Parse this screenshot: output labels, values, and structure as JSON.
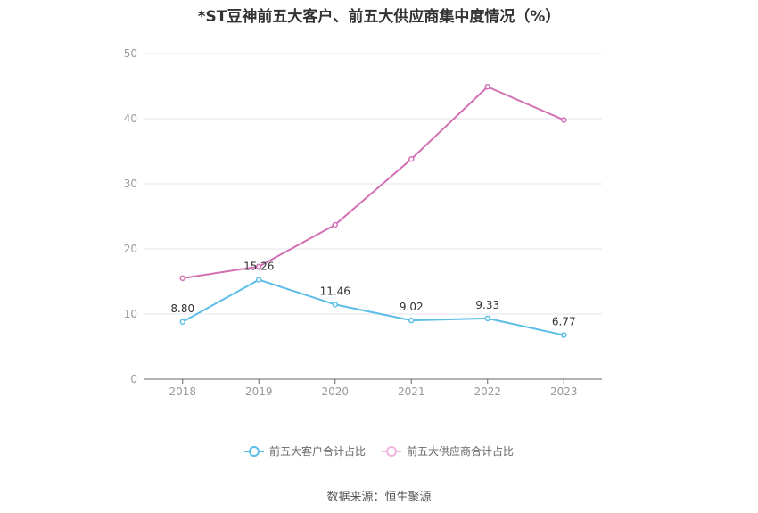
{
  "chart_data": {
    "type": "line",
    "title": "*ST豆神前五大客户、前五大供应商集中度情况（%）",
    "categories": [
      "2018",
      "2019",
      "2020",
      "2021",
      "2022",
      "2023"
    ],
    "ylim": [
      0,
      50
    ],
    "yticks": [
      0,
      10,
      20,
      30,
      40,
      50
    ],
    "grid": true,
    "legend_position": "bottom",
    "series": [
      {
        "name": "前五大客户合计占比",
        "values": [
          8.8,
          15.26,
          11.46,
          9.02,
          9.33,
          6.77
        ],
        "labels": [
          "8.80",
          "15.26",
          "11.46",
          "9.02",
          "9.33",
          "6.77"
        ],
        "color": "#5bbde8"
      },
      {
        "name": "前五大供应商合计占比",
        "values": [
          15.5,
          17.3,
          23.7,
          33.8,
          44.9,
          39.8
        ],
        "color": "#d36fb3"
      }
    ]
  },
  "source": "数据来源：恒生聚源"
}
